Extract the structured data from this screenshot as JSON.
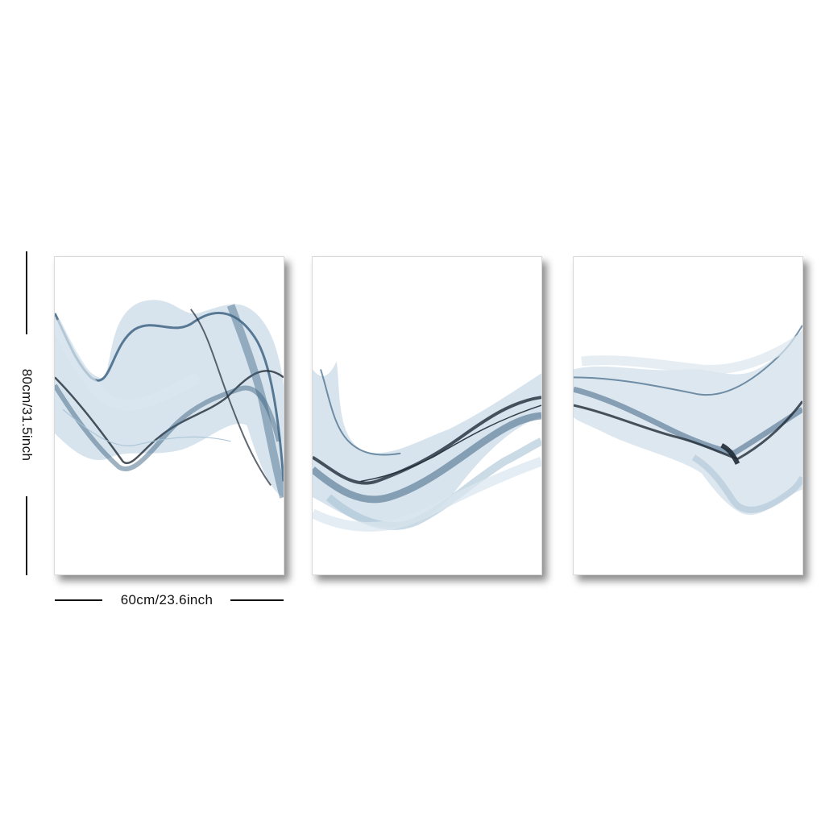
{
  "dimensions": {
    "height_label": "80cm/31.5inch",
    "width_label": "60cm/23.6inch"
  },
  "artwork": {
    "panels": [
      {
        "name": "left-panel",
        "subject": "abstract blue ink smoke wave"
      },
      {
        "name": "center-panel",
        "subject": "abstract blue ink smoke wave"
      },
      {
        "name": "right-panel",
        "subject": "abstract blue ink smoke wave"
      }
    ],
    "colors": {
      "ink_dark": "#1f2a36",
      "ink_blue": "#3f6584",
      "ink_light": "#a9c3d6",
      "ink_pale": "#dbe7ef",
      "panel_bg": "#ffffff",
      "dimension_line": "#111111"
    }
  }
}
